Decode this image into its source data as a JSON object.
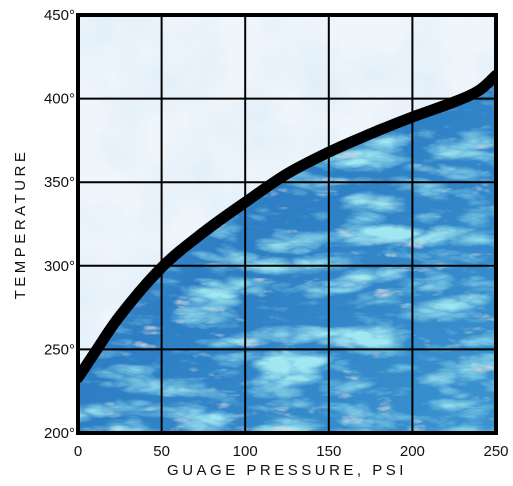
{
  "chart_data": {
    "type": "area",
    "title": "",
    "xlabel": "GUAGE PRESSURE, PSI",
    "ylabel": "TEMPERATURE",
    "xlim": [
      0,
      250
    ],
    "ylim": [
      200,
      450
    ],
    "xticks": [
      "0",
      "50",
      "100",
      "150",
      "200",
      "250"
    ],
    "yticks": [
      "200°",
      "250°",
      "300°",
      "350°",
      "400°",
      "450°"
    ],
    "grid": true,
    "legend": "none",
    "series": [
      {
        "x": [
          0,
          10,
          25,
          50,
          75,
          100,
          125,
          150,
          175,
          200,
          225,
          240,
          250
        ],
        "y": [
          233,
          248,
          270,
          299,
          320,
          338,
          355,
          368,
          379,
          389,
          398,
          405,
          414
        ]
      }
    ],
    "colors": {
      "below_curve": "#2f7fc4",
      "below_curve_light": "#59c3da",
      "below_curve_gray": "#a8adb8",
      "above_curve": "#eef5fb",
      "above_curve_cloud": "#b9d6ef",
      "curve": "#000000",
      "grid": "#000000"
    }
  }
}
